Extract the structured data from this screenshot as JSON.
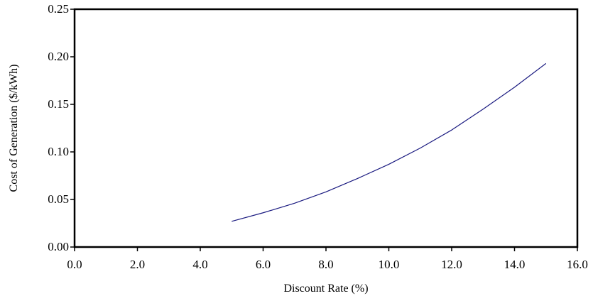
{
  "chart_data": {
    "type": "line",
    "title": "",
    "xlabel": "Discount Rate (%)",
    "ylabel": "Cost of Generation ($/kWh)",
    "xlim": [
      0,
      16
    ],
    "ylim": [
      0,
      0.25
    ],
    "x_ticks": [
      "0.0",
      "2.0",
      "4.0",
      "6.0",
      "8.0",
      "10.0",
      "12.0",
      "14.0",
      "16.0"
    ],
    "y_ticks": [
      "0.00",
      "0.05",
      "0.10",
      "0.15",
      "0.20",
      "0.25"
    ],
    "grid": false,
    "legend": "none",
    "series": [
      {
        "color": "#1a1a80",
        "x": [
          5,
          6,
          7,
          8,
          9,
          10,
          11,
          12,
          13,
          14,
          15
        ],
        "y": [
          0.027,
          0.036,
          0.046,
          0.058,
          0.072,
          0.087,
          0.104,
          0.123,
          0.145,
          0.168,
          0.193
        ]
      }
    ]
  }
}
